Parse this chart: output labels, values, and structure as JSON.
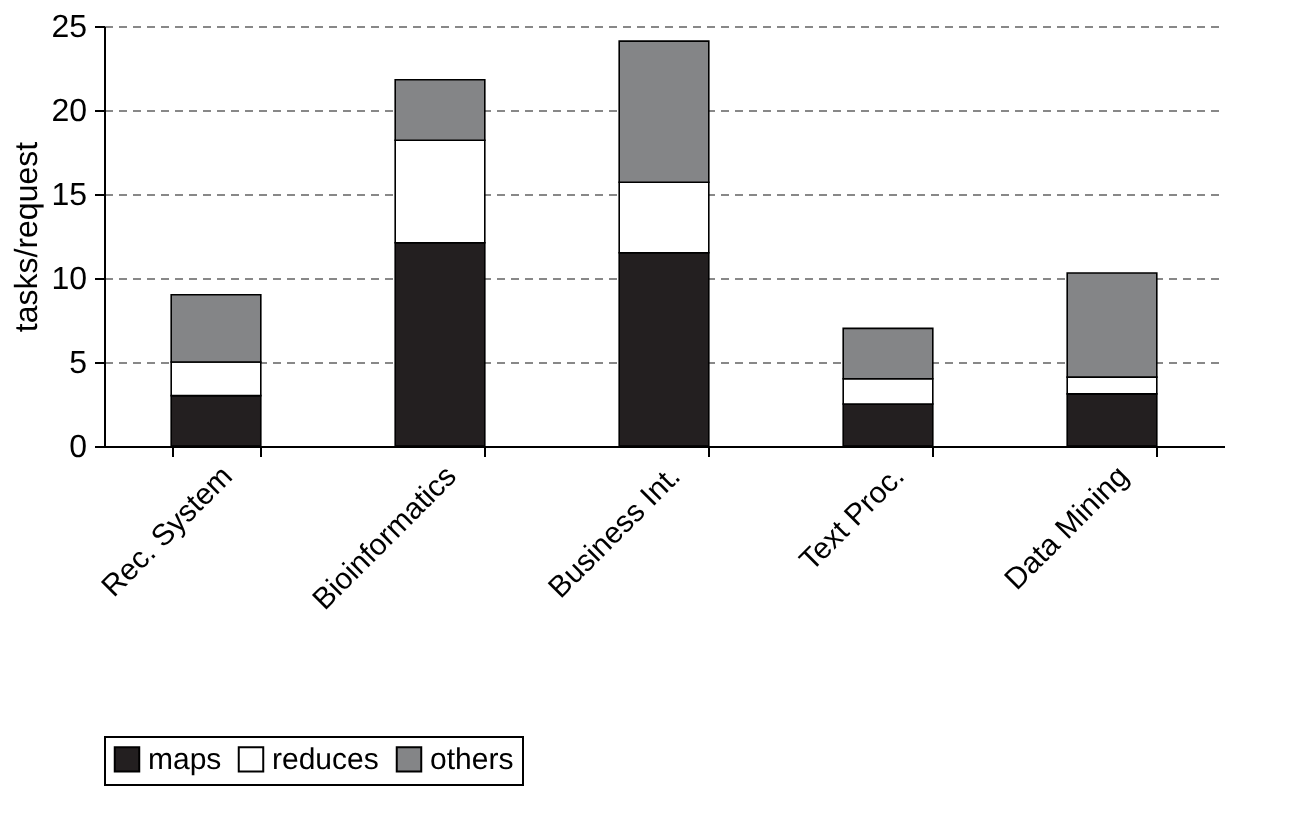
{
  "chart_data": {
    "type": "bar",
    "stacked": true,
    "ylabel": "tasks/request",
    "categories": [
      "Rec. System",
      "Bioinformatics",
      "Business Int.",
      "Text Proc.",
      "Data Mining"
    ],
    "series": [
      {
        "name": "maps",
        "color": "#231f20",
        "values": [
          3.0,
          12.1,
          11.5,
          2.5,
          3.1
        ]
      },
      {
        "name": "reduces",
        "color": "#ffffff",
        "values": [
          2.0,
          6.1,
          4.2,
          1.5,
          1.0
        ]
      },
      {
        "name": "others",
        "color": "#848587",
        "values": [
          4.0,
          3.6,
          8.4,
          3.0,
          6.2
        ]
      }
    ],
    "ylim": [
      0,
      25
    ],
    "yticks": [
      0,
      5,
      10,
      15,
      20,
      25
    ],
    "grid": "y",
    "legend": "bottom"
  }
}
